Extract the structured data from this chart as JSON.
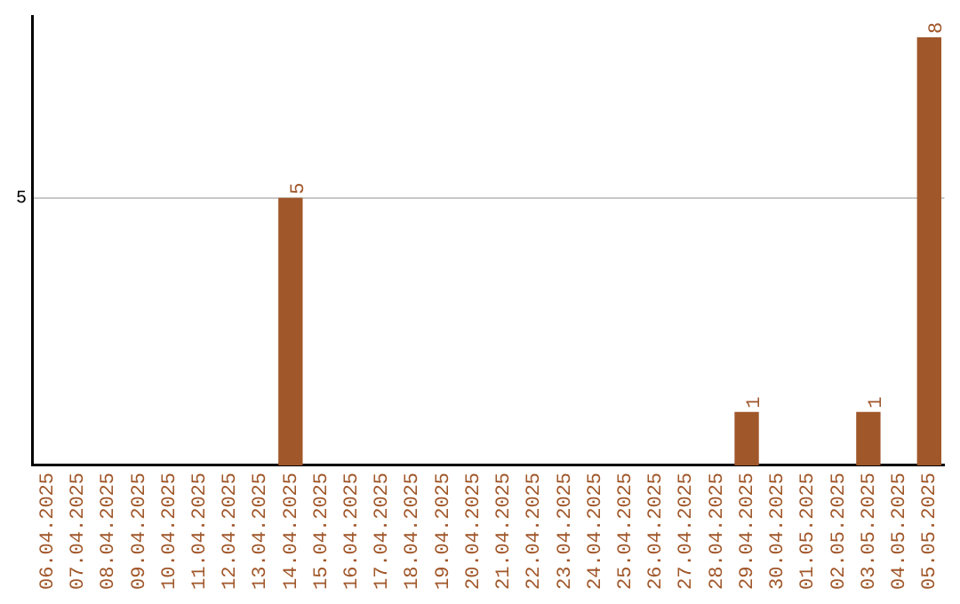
{
  "chart_data": {
    "type": "bar",
    "categories": [
      "06.04.2025",
      "07.04.2025",
      "08.04.2025",
      "09.04.2025",
      "10.04.2025",
      "11.04.2025",
      "12.04.2025",
      "13.04.2025",
      "14.04.2025",
      "15.04.2025",
      "16.04.2025",
      "17.04.2025",
      "18.04.2025",
      "19.04.2025",
      "20.04.2025",
      "21.04.2025",
      "22.04.2025",
      "23.04.2025",
      "24.04.2025",
      "25.04.2025",
      "26.04.2025",
      "27.04.2025",
      "28.04.2025",
      "29.04.2025",
      "30.04.2025",
      "01.05.2025",
      "02.05.2025",
      "03.05.2025",
      "04.05.2025",
      "05.05.2025"
    ],
    "values": [
      0,
      0,
      0,
      0,
      0,
      0,
      0,
      0,
      5,
      0,
      0,
      0,
      0,
      0,
      0,
      0,
      0,
      0,
      0,
      0,
      0,
      0,
      0,
      1,
      0,
      0,
      0,
      1,
      0,
      8
    ],
    "value_labels": [
      null,
      null,
      null,
      null,
      null,
      null,
      null,
      null,
      "5",
      null,
      null,
      null,
      null,
      null,
      null,
      null,
      null,
      null,
      null,
      null,
      null,
      null,
      null,
      "1",
      null,
      null,
      null,
      "1",
      null,
      "8"
    ],
    "color": "#a0572a",
    "ylim": [
      0,
      8.4
    ],
    "yticks": [
      5
    ],
    "grid": "y",
    "legend": false
  }
}
